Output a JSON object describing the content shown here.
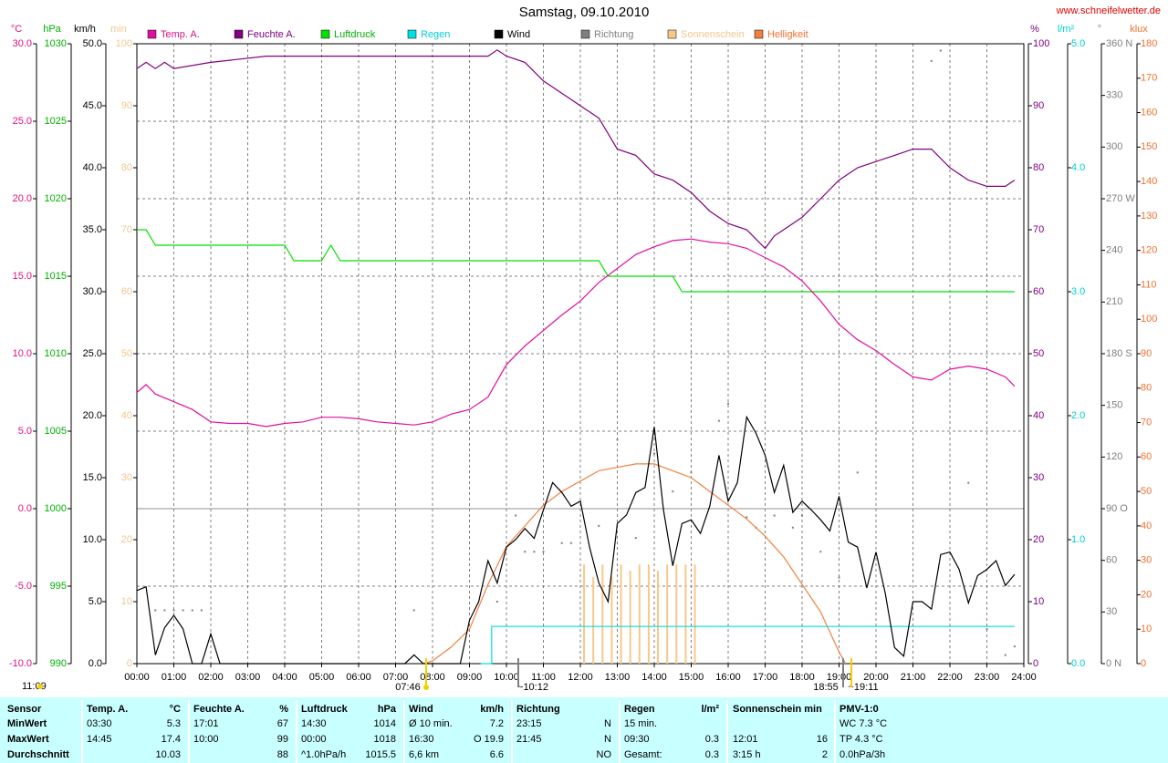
{
  "header": {
    "title": "Samstag, 09.10.2010",
    "site": "www.schneifelwetter.de"
  },
  "chart_data": {
    "type": "line",
    "xlim": [
      0,
      24
    ],
    "xticks": [
      {
        "value": 0,
        "label": "00:00"
      },
      {
        "value": 1,
        "label": "01:00"
      },
      {
        "value": 2,
        "label": "02:00"
      },
      {
        "value": 3,
        "label": "03:00"
      },
      {
        "value": 4,
        "label": "04:00"
      },
      {
        "value": 5,
        "label": "05:00"
      },
      {
        "value": 6,
        "label": "06:00"
      },
      {
        "value": 7,
        "label": "07:00"
      },
      {
        "value": 8,
        "label": "08:00"
      },
      {
        "value": 9,
        "label": "09:00"
      },
      {
        "value": 10,
        "label": "10:00"
      },
      {
        "value": 11,
        "label": "11:00"
      },
      {
        "value": 12,
        "label": "12:00"
      },
      {
        "value": 13,
        "label": "13:00"
      },
      {
        "value": 14,
        "label": "14:00"
      },
      {
        "value": 15,
        "label": "15:00"
      },
      {
        "value": 16,
        "label": "16:00"
      },
      {
        "value": 17,
        "label": "17:00"
      },
      {
        "value": 18,
        "label": "18:00"
      },
      {
        "value": 19,
        "label": "19:00"
      },
      {
        "value": 20,
        "label": "20:00"
      },
      {
        "value": 21,
        "label": "21:00"
      },
      {
        "value": 22,
        "label": "22:00"
      },
      {
        "value": 23,
        "label": "23:00"
      },
      {
        "value": 24,
        "label": "24:00"
      }
    ],
    "grid": true,
    "axes": {
      "temp": {
        "label": "°C",
        "side": "left",
        "color": "#e0107f",
        "lim": [
          -10,
          30
        ],
        "ticks": [
          {
            "value": 30,
            "label": "30.0"
          },
          {
            "value": 25,
            "label": "25.0"
          },
          {
            "value": 20,
            "label": "20.0"
          },
          {
            "value": 15,
            "label": "15.0"
          },
          {
            "value": 10,
            "label": "10.0"
          },
          {
            "value": 5,
            "label": "5.0"
          },
          {
            "value": 0,
            "label": "0.0"
          },
          {
            "value": -5,
            "label": "-5.0"
          },
          {
            "value": -10,
            "label": "-10.0"
          }
        ]
      },
      "pressure": {
        "label": "hPa",
        "side": "left",
        "color": "#00b000",
        "lim": [
          990,
          1030
        ],
        "ticks": [
          1030,
          1025,
          1020,
          1015,
          1010,
          1005,
          1000,
          995,
          990
        ]
      },
      "wind": {
        "label": "km/h",
        "side": "left",
        "color": "#000000",
        "lim": [
          0,
          50
        ],
        "ticks": [
          {
            "value": 50,
            "label": "50.0"
          },
          {
            "value": 45,
            "label": "45.0"
          },
          {
            "value": 40,
            "label": "40.0"
          },
          {
            "value": 35,
            "label": "35.0"
          },
          {
            "value": 30,
            "label": "30.0"
          },
          {
            "value": 25,
            "label": "25.0"
          },
          {
            "value": 20,
            "label": "20.0"
          },
          {
            "value": 15,
            "label": "15.0"
          },
          {
            "value": 10,
            "label": "10.0"
          },
          {
            "value": 5,
            "label": "5.0"
          },
          {
            "value": 0,
            "label": "0.0"
          }
        ]
      },
      "sun": {
        "label": "min",
        "side": "left",
        "color": "#f0c890",
        "lim": [
          0,
          100
        ],
        "ticks": [
          100,
          90,
          80,
          70,
          60,
          50,
          40,
          30,
          20,
          10,
          0
        ]
      },
      "humidity": {
        "label": "%",
        "side": "right",
        "color": "#800080",
        "lim": [
          0,
          100
        ],
        "ticks": [
          100,
          90,
          80,
          70,
          60,
          50,
          40,
          30,
          20,
          10,
          0
        ]
      },
      "rain": {
        "label": "l/m²",
        "side": "right",
        "color": "#00d0d0",
        "lim": [
          0,
          5
        ],
        "ticks": [
          {
            "value": 5,
            "label": "5.0"
          },
          {
            "value": 4,
            "label": "4.0"
          },
          {
            "value": 3,
            "label": "3.0"
          },
          {
            "value": 2,
            "label": "2.0"
          },
          {
            "value": 1,
            "label": "1.0"
          },
          {
            "value": 0,
            "label": "0.0"
          }
        ]
      },
      "direction": {
        "label": "°",
        "side": "right",
        "color": "#808080",
        "lim": [
          0,
          360
        ],
        "ticks": [
          {
            "value": 360,
            "label": "360 N"
          },
          330,
          300,
          {
            "value": 270,
            "label": "270 W"
          },
          240,
          210,
          {
            "value": 180,
            "label": "180 S"
          },
          150,
          120,
          {
            "value": 90,
            "label": "90 O"
          },
          60,
          30,
          {
            "value": 0,
            "label": "0 N"
          }
        ]
      },
      "light": {
        "label": "klux",
        "side": "right",
        "color": "#f07030",
        "lim": [
          0,
          180
        ],
        "ticks": [
          180,
          170,
          160,
          150,
          140,
          130,
          120,
          110,
          100,
          90,
          80,
          70,
          60,
          50,
          40,
          30,
          20,
          10,
          0
        ]
      }
    },
    "series": [
      {
        "name": "Temp. A.",
        "type": "line",
        "axis": "temp",
        "color": "#e0109f",
        "x": [
          0,
          0.25,
          0.5,
          1,
          1.5,
          2,
          2.5,
          3,
          3.5,
          4,
          4.5,
          5,
          5.5,
          6,
          6.5,
          7,
          7.5,
          8,
          8.5,
          9,
          9.5,
          10,
          10.5,
          11,
          11.5,
          12,
          12.5,
          13,
          13.5,
          14,
          14.5,
          15,
          15.5,
          16,
          16.5,
          17,
          17.5,
          18,
          18.5,
          19,
          19.5,
          20,
          20.5,
          21,
          21.5,
          22,
          22.5,
          23,
          23.5,
          23.75
        ],
        "values": [
          7.5,
          8.0,
          7.4,
          6.9,
          6.4,
          5.6,
          5.5,
          5.5,
          5.3,
          5.5,
          5.6,
          5.9,
          5.9,
          5.8,
          5.6,
          5.5,
          5.4,
          5.6,
          6.1,
          6.4,
          7.2,
          9.3,
          10.5,
          11.5,
          12.5,
          13.4,
          14.6,
          15.5,
          16.4,
          16.9,
          17.3,
          17.4,
          17.2,
          17.1,
          16.8,
          16.2,
          15.6,
          14.7,
          13.4,
          11.9,
          10.9,
          10.2,
          9.3,
          8.5,
          8.3,
          9.0,
          9.2,
          9.0,
          8.5,
          7.9
        ]
      },
      {
        "name": "Feuchte A.",
        "type": "line",
        "axis": "humidity",
        "color": "#800080",
        "x": [
          0,
          0.25,
          0.5,
          0.75,
          1,
          2,
          3.5,
          9.5,
          9.75,
          10,
          10.5,
          11,
          11.5,
          12,
          12.5,
          13,
          13.5,
          14,
          14.5,
          15,
          15.5,
          16,
          16.5,
          17,
          17.25,
          17.5,
          18,
          18.5,
          19,
          19.5,
          20,
          20.5,
          21,
          21.5,
          22,
          22.5,
          23,
          23.5,
          23.75
        ],
        "values": [
          96,
          97,
          96,
          97,
          96,
          97,
          98,
          98,
          99,
          98,
          97,
          94,
          92,
          90,
          88,
          83,
          82,
          79,
          78,
          76,
          73,
          71,
          70,
          67,
          69,
          70,
          72,
          75,
          78,
          80,
          81,
          82,
          83,
          83,
          80,
          78,
          77,
          77,
          78
        ]
      },
      {
        "name": "Luftdruck",
        "type": "line",
        "axis": "pressure",
        "color": "#00e000",
        "x": [
          0,
          0.25,
          0.5,
          4,
          4.25,
          5,
          5.25,
          5.5,
          12.5,
          12.75,
          14.5,
          14.75,
          23.75
        ],
        "values": [
          1018,
          1018,
          1017,
          1017,
          1016,
          1016,
          1017,
          1016,
          1016,
          1015,
          1015,
          1014,
          1014
        ]
      },
      {
        "name": "Regen",
        "type": "line",
        "axis": "rain",
        "color": "#00e0e0",
        "x": [
          9.3,
          9.6,
          9.6,
          23.75
        ],
        "values": [
          0,
          0,
          0.3,
          0.3
        ]
      },
      {
        "name": "Wind",
        "type": "line",
        "axis": "wind",
        "color": "#000000",
        "x": [
          0,
          0.25,
          0.5,
          0.75,
          1,
          1.25,
          1.5,
          1.75,
          2,
          2.25,
          7.25,
          7.5,
          7.75,
          8.75,
          9,
          9.25,
          9.5,
          9.75,
          10,
          10.25,
          10.5,
          10.75,
          11,
          11.25,
          11.5,
          11.75,
          12,
          12.25,
          12.5,
          12.75,
          13,
          13.25,
          13.5,
          13.75,
          14,
          14.25,
          14.5,
          14.75,
          15,
          15.25,
          15.5,
          15.75,
          16,
          16.25,
          16.5,
          16.75,
          17,
          17.25,
          17.5,
          17.75,
          18,
          18.25,
          18.5,
          18.75,
          19,
          19.25,
          19.5,
          19.75,
          20,
          20.25,
          20.5,
          20.75,
          21,
          21.25,
          21.5,
          21.75,
          22,
          22.25,
          22.5,
          22.75,
          23,
          23.25,
          23.5,
          23.75
        ],
        "values": [
          5.9,
          6.2,
          0.7,
          2.9,
          3.9,
          2.8,
          0,
          0,
          2.4,
          0,
          0,
          0.7,
          0,
          0,
          3.5,
          5.0,
          8.3,
          6.5,
          9.4,
          10.0,
          10.9,
          10.1,
          12.4,
          14.6,
          13.8,
          12.7,
          13.1,
          9.4,
          6.5,
          5.0,
          11.3,
          12.0,
          13.8,
          14.2,
          19.1,
          12.4,
          7.9,
          11.3,
          11.6,
          10.5,
          12.7,
          16.8,
          13.1,
          14.6,
          19.9,
          18.6,
          16.8,
          13.8,
          16.0,
          12.2,
          13.1,
          12.4,
          11.6,
          10.7,
          13.5,
          9.8,
          9.4,
          6.1,
          9.0,
          5.7,
          1.3,
          0.6,
          5.0,
          5.0,
          4.4,
          8.8,
          9.0,
          7.6,
          4.9,
          7.1,
          7.6,
          8.3,
          6.3,
          7.2
        ]
      },
      {
        "name": "Richtung",
        "type": "scatter",
        "axis": "direction",
        "color": "#808080",
        "x": [
          0.5,
          0.75,
          1,
          1.25,
          1.5,
          1.75,
          7.5,
          9.75,
          10.25,
          10.5,
          10.75,
          11,
          11.5,
          11.75,
          12.5,
          13,
          13.5,
          14,
          14.5,
          15,
          15.75,
          16,
          16.5,
          16.75,
          17.25,
          17.75,
          18,
          18.5,
          19,
          19.5,
          21.5,
          21.75,
          22.5,
          23,
          23.5,
          23.75
        ],
        "values": [
          31,
          31,
          31,
          31,
          31,
          31,
          31,
          36,
          86,
          65,
          65,
          65,
          70,
          70,
          80,
          130,
          73,
          122,
          100,
          111,
          141,
          151,
          85,
          79,
          86,
          79,
          86,
          65,
          50,
          111,
          350,
          356,
          105,
          20,
          5,
          10
        ]
      },
      {
        "name": "Sonnenschein",
        "type": "bar",
        "axis": "sun",
        "color": "#f8c888",
        "x": [
          12.1,
          12.35,
          12.6,
          12.85,
          13.1,
          13.35,
          13.6,
          13.85,
          14.1,
          14.35,
          14.6,
          14.85,
          15.1
        ],
        "values": [
          16,
          14,
          16,
          14,
          16,
          15,
          16,
          16,
          15,
          16,
          16,
          16,
          16
        ]
      },
      {
        "name": "Helligkeit",
        "type": "line",
        "axis": "light",
        "color": "#f08040",
        "x": [
          7.77,
          8,
          8.5,
          9,
          9.5,
          10,
          10.5,
          11,
          11.5,
          12,
          12.5,
          13,
          13.5,
          14,
          14.5,
          15,
          15.5,
          16,
          16.5,
          17,
          17.5,
          18,
          18.5,
          19,
          19.18
        ],
        "values": [
          0,
          0.8,
          4.8,
          10,
          23,
          34,
          40,
          46,
          50,
          53,
          56,
          57,
          58,
          58,
          56,
          54,
          50,
          46,
          42,
          37,
          31,
          23,
          15,
          3.4,
          0
        ]
      }
    ],
    "annotations": [
      "11:09",
      "07:46",
      "~10:12",
      "18:55",
      "~19:11"
    ]
  },
  "table": {
    "header": [
      "Sensor",
      [
        "Temp. A.",
        "°C"
      ],
      [
        "Feuchte A.",
        "%"
      ],
      [
        "Luftdruck",
        "hPa"
      ],
      [
        "Wind",
        "km/h"
      ],
      "Richtung",
      [
        "Regen",
        "l/m²"
      ],
      "Sonnenschein min",
      "PMV-1:0"
    ],
    "rows": [
      [
        "MinWert",
        [
          "03:30",
          "5.3"
        ],
        [
          "17:01",
          "67"
        ],
        [
          "14:30",
          "1014"
        ],
        [
          "Ø 10 min.",
          "7.2"
        ],
        [
          "23:15",
          "N"
        ],
        [
          "15 min.",
          null
        ],
        null,
        "WC 7.3 °C"
      ],
      [
        "MaxWert",
        [
          "14:45",
          "17.4"
        ],
        [
          "10:00",
          "99"
        ],
        [
          "00:00",
          "1018"
        ],
        [
          "16:30",
          "O 19.9"
        ],
        [
          "21:45",
          "N"
        ],
        [
          "09:30",
          "0.3"
        ],
        [
          "12:01",
          "16"
        ],
        "TP 4.3 °C"
      ],
      [
        "Durchschnitt",
        [
          null,
          "10.03"
        ],
        [
          null,
          "88"
        ],
        [
          "^1.0hPa/h",
          "1015.5"
        ],
        [
          "6,6 km",
          "6.6"
        ],
        [
          null,
          "NO"
        ],
        [
          "Gesamt:",
          "0.3"
        ],
        [
          "3:15 h",
          "2"
        ],
        "0.0hPa/3h"
      ]
    ]
  }
}
